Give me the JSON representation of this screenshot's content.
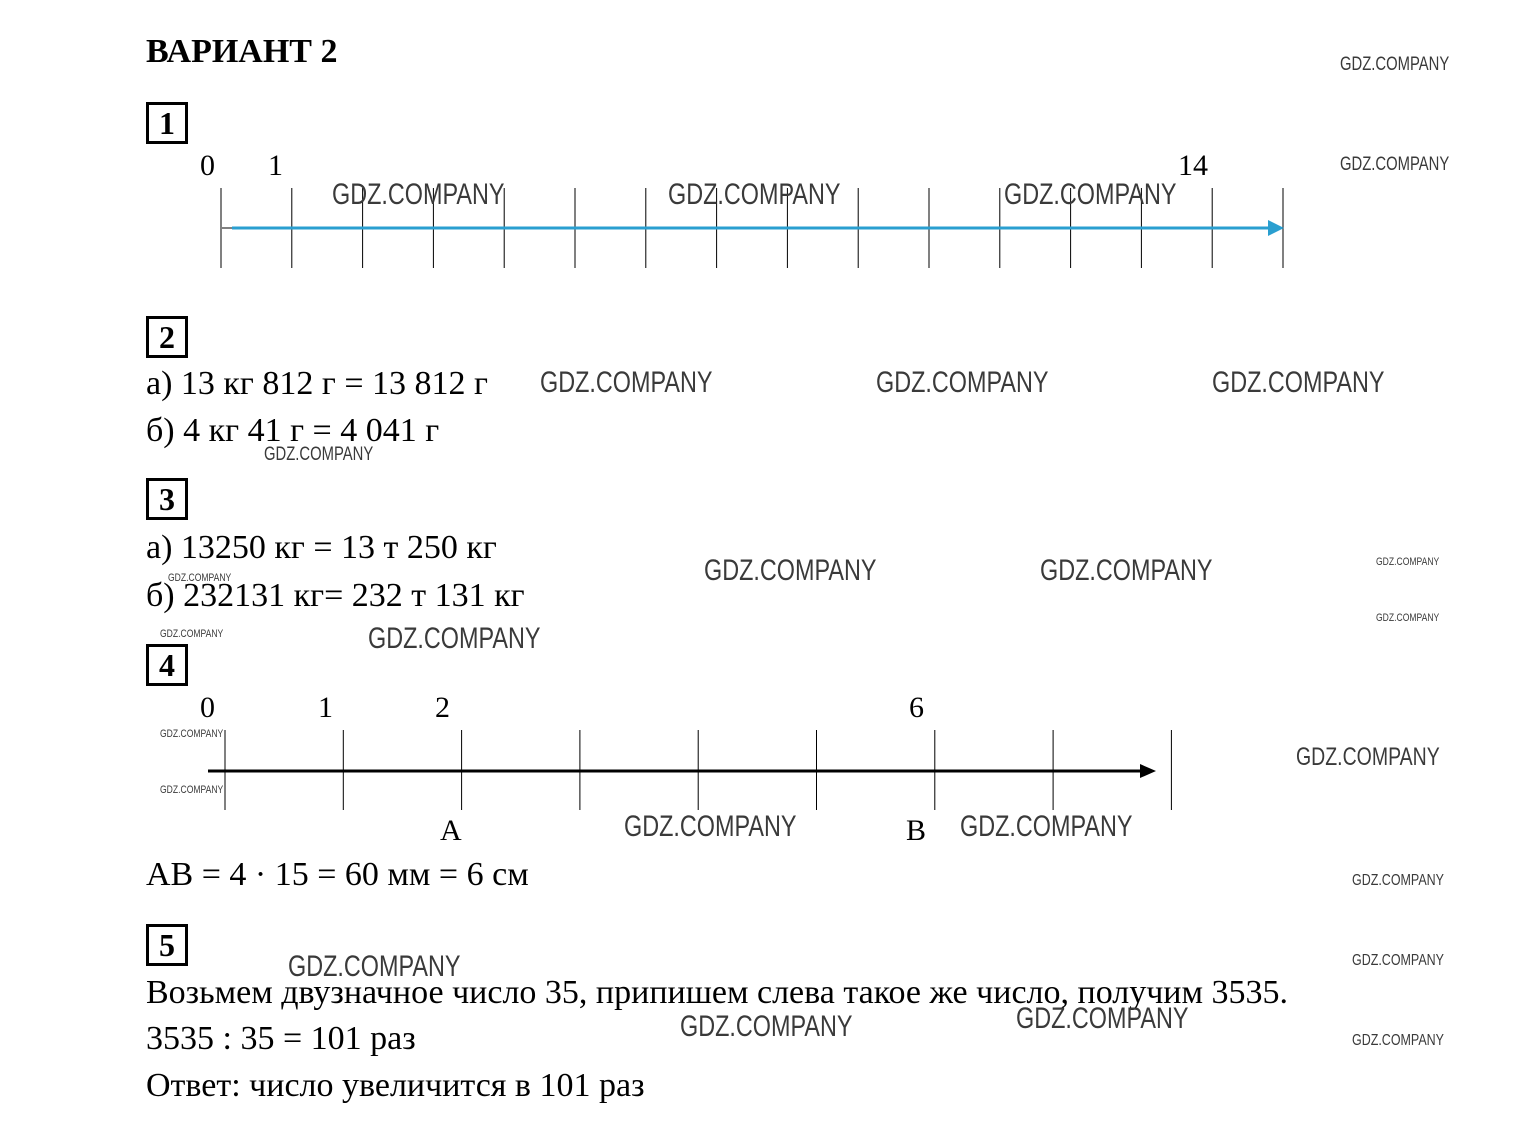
{
  "title": "ВАРИАНТ 2",
  "tasks": {
    "t1": {
      "number": "1",
      "axis_labels": [
        "0",
        "1",
        "14"
      ],
      "arrow_color": "#2a9fd0"
    },
    "t2": {
      "number": "2",
      "a": "а) 13 кг 812 г = 13 812 г",
      "b": "б) 4 кг 41 г = 4 041 г"
    },
    "t3": {
      "number": "3",
      "a": "а) 13250 кг = 13 т 250 кг",
      "b": "б) 232131 кг= 232 т 131 кг"
    },
    "t4": {
      "number": "4",
      "axis_labels": [
        "0",
        "1",
        "2",
        "6"
      ],
      "point_a": "А",
      "point_b": "В",
      "result": "АВ = 4 · 15 = 60 мм = 6 см"
    },
    "t5": {
      "number": "5",
      "line1": "Возьмем двузначное число 35, припишем слева такое же число, получим 3535.",
      "line2": "3535 : 35 = 101 раз",
      "line3": "Ответ: число увеличится в 101 раз"
    }
  },
  "watermark": "GDZ.COMPANY"
}
